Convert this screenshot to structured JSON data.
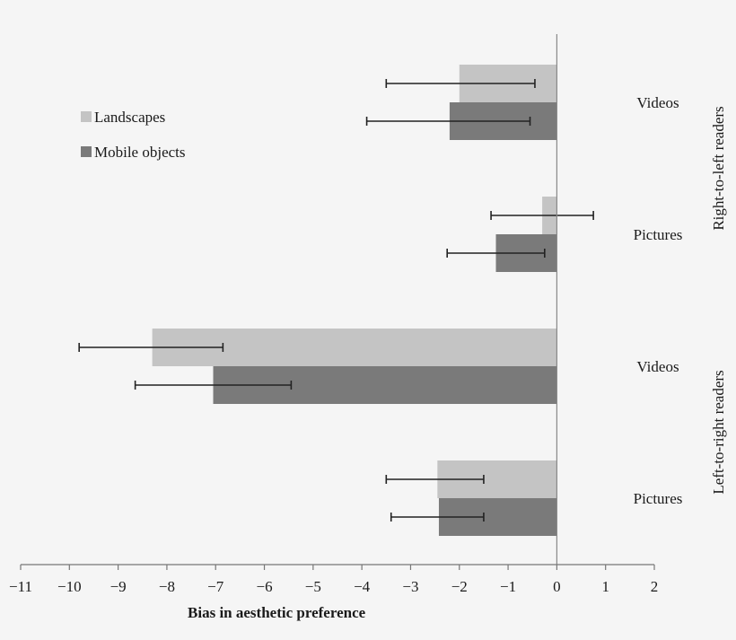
{
  "chart_data": {
    "type": "bar",
    "orientation": "horizontal",
    "xlabel": "Bias in aesthetic preference",
    "xlim": [
      -11,
      2
    ],
    "xticks": [
      -11,
      -10,
      -9,
      -8,
      -7,
      -6,
      -5,
      -4,
      -3,
      -2,
      -1,
      0,
      1,
      2
    ],
    "xtick_labels": [
      "−11",
      "−10",
      "−9",
      "−8",
      "−7",
      "−6",
      "−5",
      "−4",
      "−3",
      "−2",
      "−1",
      "0",
      "1",
      "2"
    ],
    "legend_position": "top-left",
    "grid": false,
    "series": [
      {
        "name": "Landscapes",
        "color": "#c4c4c4"
      },
      {
        "name": "Mobile objects",
        "color": "#7a7a7a"
      }
    ],
    "groups": [
      {
        "label": "Right-to-left readers",
        "categories": [
          {
            "label": "Videos",
            "values": [
              -2.0,
              -2.2
            ],
            "error_low": [
              -3.5,
              -3.9
            ],
            "error_high": [
              -0.45,
              -0.55
            ]
          },
          {
            "label": "Pictures",
            "values": [
              -0.3,
              -1.25
            ],
            "error_low": [
              -1.35,
              -2.25
            ],
            "error_high": [
              0.75,
              -0.25
            ]
          }
        ]
      },
      {
        "label": "Left-to-right readers",
        "categories": [
          {
            "label": "Videos",
            "values": [
              -8.3,
              -7.05
            ],
            "error_low": [
              -9.8,
              -8.65
            ],
            "error_high": [
              -6.85,
              -5.45
            ]
          },
          {
            "label": "Pictures",
            "values": [
              -2.45,
              -2.42
            ],
            "error_low": [
              -3.5,
              -3.4
            ],
            "error_high": [
              -1.5,
              -1.5
            ]
          }
        ]
      }
    ]
  }
}
